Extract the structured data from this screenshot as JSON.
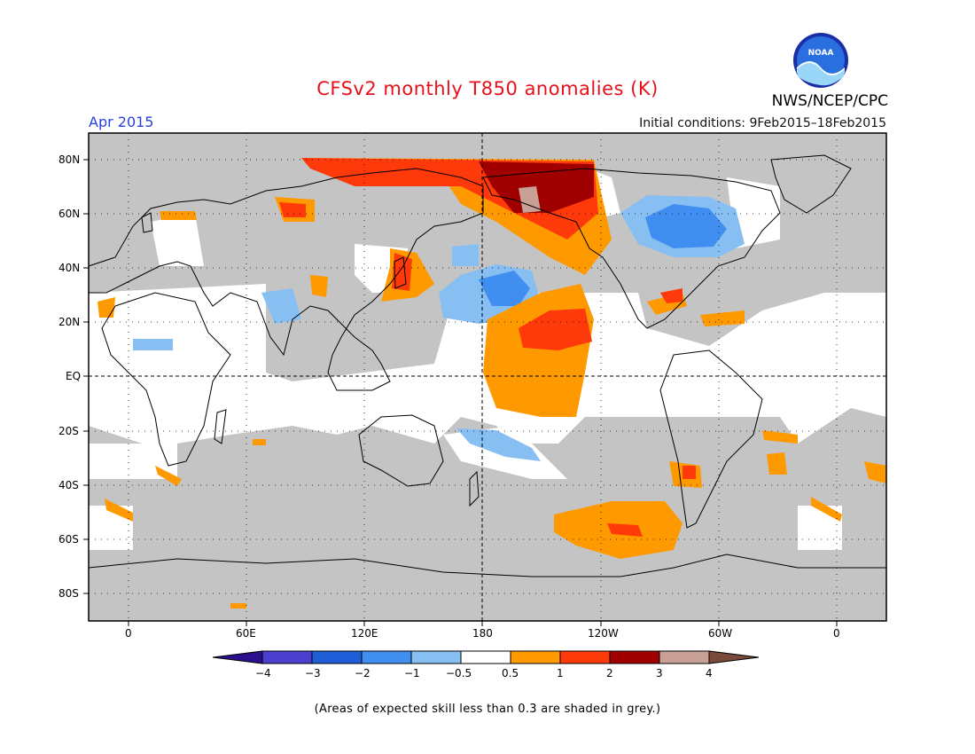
{
  "title": "CFSv2 monthly T850 anomalies (K)",
  "period": "Apr 2015",
  "initial_conditions": "Initial conditions: 9Feb2015–18Feb2015",
  "agency": "NWS/NCEP/CPC",
  "logo_text": "NOAA",
  "footnote": "(Areas of expected skill less than 0.3 are shaded in grey.)",
  "colors": {
    "title": "#e8101a",
    "period": "#2a3fe0",
    "grey_skill": "#c4c4c4",
    "land_outline": "#000000"
  },
  "lat_labels": [
    "80N",
    "60N",
    "40N",
    "20N",
    "EQ",
    "20S",
    "40S",
    "60S",
    "80S"
  ],
  "lon_labels": [
    "0",
    "60E",
    "120E",
    "180",
    "120W",
    "60W",
    "0"
  ],
  "colorbar": {
    "labels": [
      "−4",
      "−3",
      "−2",
      "−1",
      "−0.5",
      "0.5",
      "1",
      "2",
      "3",
      "4"
    ],
    "colors": [
      "#2c0f8c",
      "#4b3fd0",
      "#1f5ed6",
      "#3f8ef0",
      "#87bff2",
      "#ffffff",
      "#ff9900",
      "#ff3a0a",
      "#a00000",
      "#c8a095",
      "#7a4a3a"
    ]
  }
}
